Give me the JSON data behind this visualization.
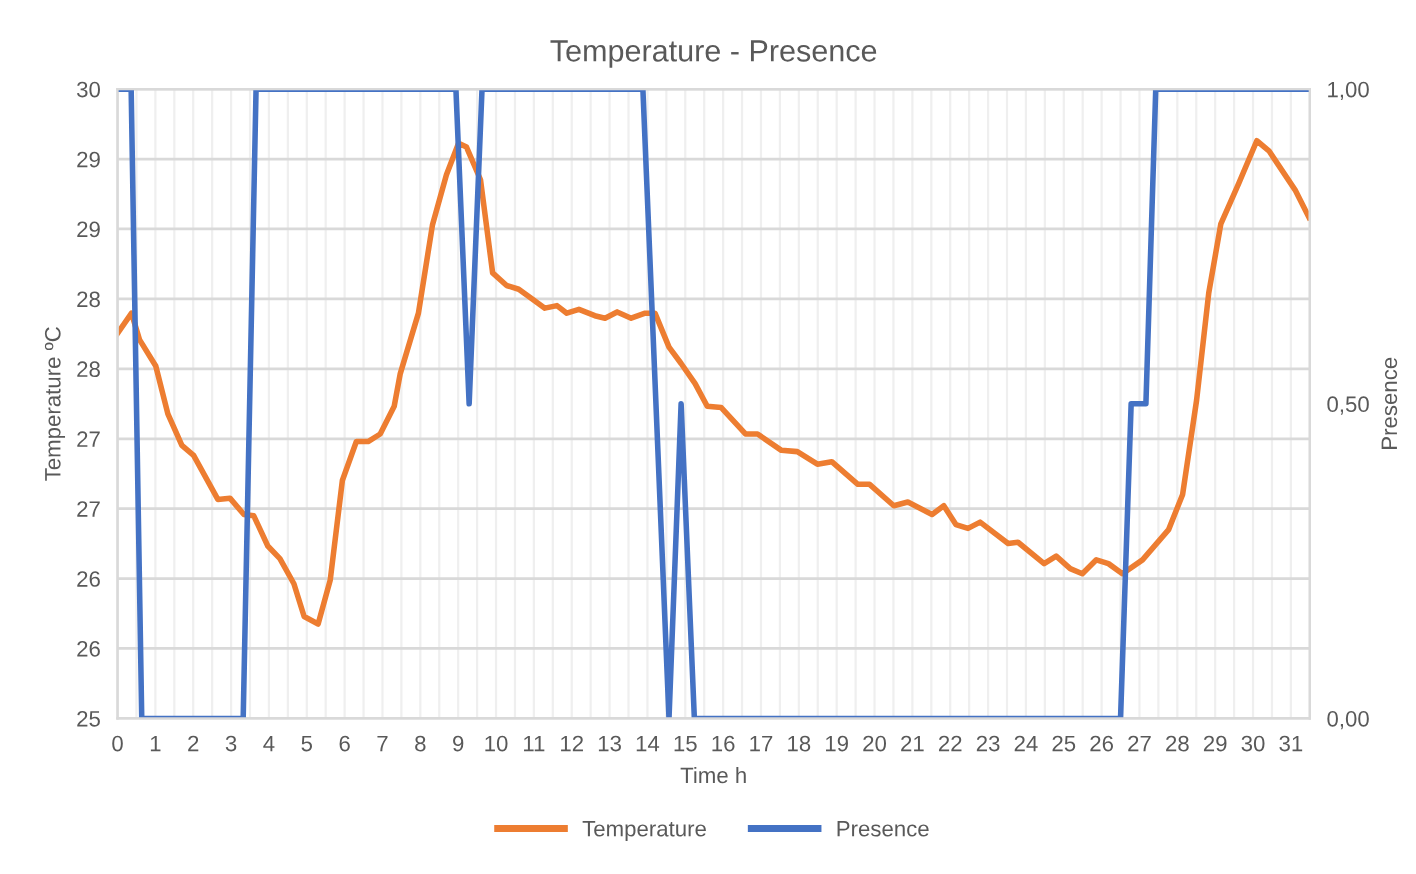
{
  "chart_data": {
    "type": "line",
    "title": "Temperature - Presence",
    "xlabel": "Time h",
    "ylabel": "Temperature ºC",
    "y2label": "Presence",
    "xlim": [
      0,
      31.5
    ],
    "xticks": [
      0,
      {
        "value": 0.5,
        "label": null
      },
      1,
      {
        "value": 1.5,
        "label": null
      },
      2,
      {
        "value": 2.5,
        "label": null
      },
      3,
      {
        "value": 3.5,
        "label": null
      },
      4,
      {
        "value": 4.5,
        "label": null
      },
      5,
      {
        "value": 5.5,
        "label": null
      },
      6,
      {
        "value": 6.5,
        "label": null
      },
      7,
      {
        "value": 7.5,
        "label": null
      },
      8,
      {
        "value": 8.5,
        "label": null
      },
      9,
      {
        "value": 9.5,
        "label": null
      },
      10,
      {
        "value": 10.5,
        "label": null
      },
      11,
      {
        "value": 11.5,
        "label": null
      },
      12,
      {
        "value": 12.5,
        "label": null
      },
      13,
      {
        "value": 13.5,
        "label": null
      },
      14,
      {
        "value": 14.5,
        "label": null
      },
      15,
      {
        "value": 15.5,
        "label": null
      },
      16,
      {
        "value": 16.5,
        "label": null
      },
      17,
      {
        "value": 17.5,
        "label": null
      },
      18,
      {
        "value": 18.5,
        "label": null
      },
      19,
      {
        "value": 19.5,
        "label": null
      },
      20,
      {
        "value": 20.5,
        "label": null
      },
      21,
      {
        "value": 21.5,
        "label": null
      },
      22,
      {
        "value": 22.5,
        "label": null
      },
      23,
      {
        "value": 23.5,
        "label": null
      },
      24,
      {
        "value": 24.5,
        "label": null
      },
      25,
      {
        "value": 25.5,
        "label": null
      },
      26,
      {
        "value": 26.5,
        "label": null
      },
      27,
      {
        "value": 27.5,
        "label": null
      },
      28,
      {
        "value": 28.5,
        "label": null
      },
      29,
      {
        "value": 29.5,
        "label": null
      },
      30,
      {
        "value": 30.5,
        "label": null
      },
      31
    ],
    "ylim": [
      25,
      30
    ],
    "yticks": [
      25,
      {
        "value": 25.556,
        "label": "26"
      },
      {
        "value": 26.111,
        "label": "26"
      },
      {
        "value": 26.667,
        "label": "27"
      },
      {
        "value": 27.222,
        "label": "27"
      },
      {
        "value": 27.778,
        "label": "28"
      },
      {
        "value": 28.333,
        "label": "28"
      },
      {
        "value": 28.889,
        "label": "29"
      },
      {
        "value": 29.444,
        "label": "29"
      },
      30
    ],
    "y2lim": [
      0,
      1
    ],
    "y2ticks": [
      {
        "value": 0,
        "label": "0,00"
      },
      {
        "value": 0.5,
        "label": "0,50"
      },
      {
        "value": 1,
        "label": "1,00"
      }
    ],
    "grid": true,
    "legend": "bottom",
    "marker": "none",
    "line_style": "solid",
    "series": [
      {
        "name": "Temperature",
        "color": "#ed7d31",
        "x": [
          0,
          0.37,
          0.58,
          1.01,
          1.33,
          1.7,
          2.01,
          2.65,
          2.97,
          3.34,
          3.6,
          3.97,
          4.29,
          4.66,
          4.93,
          5.3,
          5.62,
          5.94,
          6.31,
          6.62,
          6.94,
          7.31,
          7.47,
          7.95,
          8.32,
          8.69,
          9.01,
          9.22,
          9.59,
          9.91,
          10.28,
          10.6,
          10.92,
          11.29,
          11.61,
          11.87,
          12.19,
          12.61,
          12.88,
          13.2,
          13.57,
          13.94,
          14.2,
          14.57,
          14.89,
          15.26,
          15.58,
          15.95,
          16.59,
          16.91,
          17.54,
          17.96,
          18.49,
          18.87,
          19.56,
          19.87,
          20.51,
          20.88,
          21.52,
          21.83,
          22.15,
          22.47,
          22.79,
          23.53,
          23.79,
          24.48,
          24.8,
          25.17,
          25.49,
          25.86,
          26.18,
          26.55,
          27.08,
          27.77,
          28.14,
          28.51,
          28.83,
          29.15,
          29.62,
          30.1,
          30.42,
          31.11,
          31.48
        ],
        "values": [
          28.06,
          28.22,
          28.01,
          27.8,
          27.42,
          27.17,
          27.09,
          26.74,
          26.75,
          26.62,
          26.61,
          26.37,
          26.27,
          26.07,
          25.81,
          25.75,
          26.1,
          26.89,
          27.2,
          27.2,
          27.26,
          27.48,
          27.74,
          28.22,
          28.92,
          29.32,
          29.57,
          29.54,
          29.28,
          28.54,
          28.44,
          28.41,
          28.34,
          28.26,
          28.28,
          28.22,
          28.25,
          28.2,
          28.18,
          28.23,
          28.18,
          28.22,
          28.22,
          27.95,
          27.82,
          27.66,
          27.48,
          27.47,
          27.26,
          27.26,
          27.13,
          27.12,
          27.02,
          27.04,
          26.86,
          26.86,
          26.69,
          26.72,
          26.62,
          26.69,
          26.54,
          26.51,
          26.56,
          26.39,
          26.4,
          26.23,
          26.29,
          26.19,
          26.15,
          26.26,
          26.23,
          26.15,
          26.26,
          26.5,
          26.78,
          27.53,
          28.38,
          28.93,
          29.25,
          29.59,
          29.51,
          29.2,
          28.98
        ]
      },
      {
        "name": "Presence",
        "color": "#4472c4",
        "axis": "y2",
        "x": [
          0,
          0.36,
          0.64,
          3.32,
          3.66,
          8.94,
          9.29,
          9.63,
          13.88,
          14.57,
          14.89,
          15.24,
          26.5,
          26.78,
          27.17,
          27.43,
          31.49
        ],
        "values": [
          1,
          1,
          0,
          0,
          1,
          1,
          0.5,
          1,
          1,
          0,
          0.5,
          0,
          0,
          0.5,
          0.5,
          1,
          1
        ]
      }
    ]
  }
}
